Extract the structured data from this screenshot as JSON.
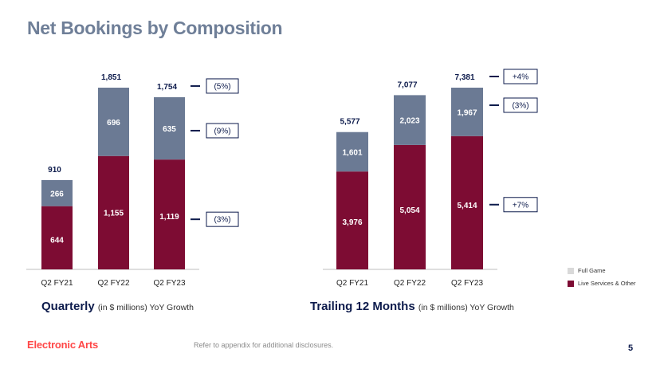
{
  "title": "Net Bookings by Composition",
  "colors": {
    "full_game": "#6b7a94",
    "live_services": "#7d0c33",
    "legend_full_game": "#d9d9d9",
    "navy": "#0d1b4c",
    "title": "#6f7f98"
  },
  "legend": {
    "full_game": "Full Game",
    "live_services": "Live Services & Other"
  },
  "captions": {
    "quarterly_main": "Quarterly",
    "quarterly_sub": "(in $ millions) YoY Growth",
    "ttm_main": "Trailing 12 Months",
    "ttm_sub": "(in $ millions) YoY Growth"
  },
  "footer": {
    "logo_text": "Electronic Arts",
    "note": "Refer to appendix for additional disclosures.",
    "page": "5"
  },
  "chart_data": [
    {
      "type": "bar",
      "stacked": true,
      "categories": [
        "Q2 FY21",
        "Q2 FY22",
        "Q2 FY23"
      ],
      "series": [
        {
          "name": "Live Services & Other",
          "values": [
            644,
            1155,
            1119
          ]
        },
        {
          "name": "Full Game",
          "values": [
            266,
            696,
            635
          ]
        }
      ],
      "totals": [
        910,
        1851,
        1754
      ],
      "ylim": [
        0,
        1851
      ],
      "growth": [
        {
          "label": "(5%)",
          "target": "total"
        },
        {
          "label": "(9%)",
          "target": "Full Game"
        },
        {
          "label": "(3%)",
          "target": "Live Services & Other"
        }
      ]
    },
    {
      "type": "bar",
      "stacked": true,
      "categories": [
        "Q2 FY21",
        "Q2 FY22",
        "Q2 FY23"
      ],
      "series": [
        {
          "name": "Live Services & Other",
          "values": [
            3976,
            5054,
            5414
          ]
        },
        {
          "name": "Full Game",
          "values": [
            1601,
            2023,
            1967
          ]
        }
      ],
      "totals": [
        5577,
        7077,
        7381
      ],
      "ylim": [
        0,
        7381
      ],
      "growth": [
        {
          "label": "+4%",
          "target": "total"
        },
        {
          "label": "(3%)",
          "target": "Full Game"
        },
        {
          "label": "+7%",
          "target": "Live Services & Other"
        }
      ]
    }
  ]
}
